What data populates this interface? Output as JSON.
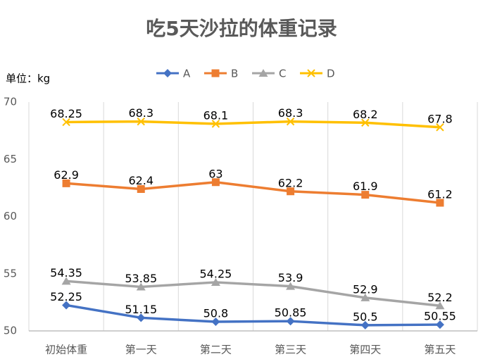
{
  "chart_data": {
    "type": "line",
    "title": "吃5天沙拉的体重记录",
    "y_label": "单位：kg",
    "categories": [
      "初始体重",
      "第一天",
      "第二天",
      "第三天",
      "第四天",
      "第五天"
    ],
    "series": [
      {
        "name": "A",
        "color": "#4472c4",
        "marker": "diamond",
        "values": [
          52.25,
          51.15,
          50.8,
          50.85,
          50.5,
          50.55
        ]
      },
      {
        "name": "B",
        "color": "#ed7d31",
        "marker": "square",
        "values": [
          62.9,
          62.4,
          63,
          62.2,
          61.9,
          61.2
        ]
      },
      {
        "name": "C",
        "color": "#a5a5a5",
        "marker": "triangle",
        "values": [
          54.35,
          53.85,
          54.25,
          53.9,
          52.9,
          52.2
        ]
      },
      {
        "name": "D",
        "color": "#ffc000",
        "marker": "x",
        "values": [
          68.25,
          68.3,
          68.1,
          68.3,
          68.2,
          67.8
        ]
      }
    ],
    "ylim": [
      50,
      70
    ],
    "yticks": [
      50,
      55,
      60,
      65,
      70
    ],
    "grid": "vertical",
    "legend": "top"
  }
}
